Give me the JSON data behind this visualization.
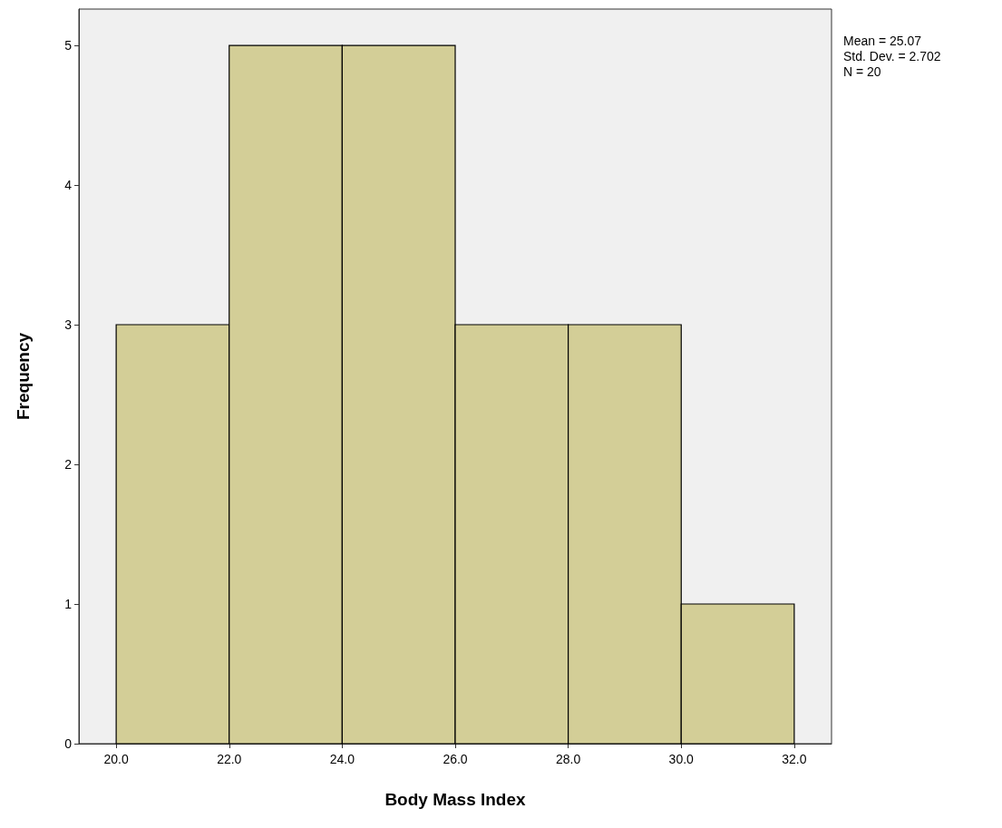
{
  "chart_data": {
    "type": "histogram",
    "xlabel": "Body Mass Index",
    "ylabel": "Frequency",
    "bins": [
      20,
      22,
      24,
      26,
      28,
      30,
      32
    ],
    "values": [
      3,
      5,
      5,
      3,
      3,
      1
    ],
    "color": "#d3ce97",
    "xlim": [
      19.34,
      32.66
    ],
    "xticks": [
      {
        "value": 20,
        "label": "20.0"
      },
      {
        "value": 22,
        "label": "22.0"
      },
      {
        "value": 24,
        "label": "24.0"
      },
      {
        "value": 26,
        "label": "26.0"
      },
      {
        "value": 28,
        "label": "28.0"
      },
      {
        "value": 30,
        "label": "30.0"
      },
      {
        "value": 32,
        "label": "32.0"
      }
    ],
    "ylim": [
      0,
      5.26
    ],
    "yticks": [
      0,
      1,
      2,
      3,
      4,
      5
    ],
    "grid": false,
    "annotations": [
      "Mean = 25.07",
      "Std. Dev. = 2.702",
      "N = 20"
    ]
  }
}
